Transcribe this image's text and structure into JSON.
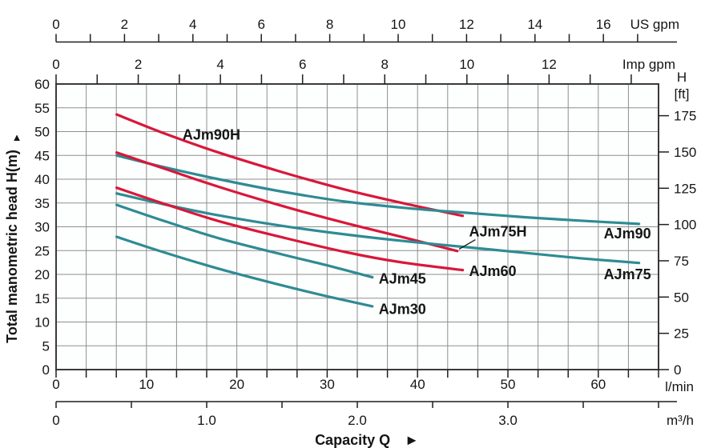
{
  "chart_data": {
    "type": "line",
    "title": "",
    "x_title": {
      "text": "Capacity Q",
      "arrow": "►"
    },
    "x_axes": {
      "us_gpm": {
        "unit": "US gpm",
        "labeled": [
          0,
          2,
          4,
          6,
          8,
          10,
          12,
          14,
          16
        ],
        "max_tick": 17,
        "lpm_per_unit": 3.7854
      },
      "imp_gpm": {
        "unit": "Imp gpm",
        "labeled": [
          0,
          2,
          4,
          6,
          8,
          10,
          12
        ],
        "max_tick": 14,
        "lpm_per_unit": 4.5461
      },
      "lpm": {
        "unit": "l/min",
        "labeled": [
          0,
          10,
          20,
          30,
          40,
          50,
          60
        ],
        "max": 66.667
      },
      "m3h": {
        "unit": "m³/h",
        "labeled": [
          "0",
          "1.0",
          "2.0",
          "3.0"
        ],
        "labeled_values": [
          0,
          1,
          2,
          3
        ],
        "tick_step": 0.5,
        "max": 4.0,
        "lpm_per_unit": 16.667
      }
    },
    "y_axes": {
      "meters": {
        "title": "Total manometric head H(m)",
        "arrow": "▲",
        "min": 0,
        "max": 60,
        "label_step": 5
      },
      "feet": {
        "title_line1": "H",
        "title_line2": "[ft]",
        "labeled": [
          0,
          25,
          50,
          75,
          100,
          125,
          150,
          175
        ],
        "m_per_unit": 0.3048
      }
    },
    "grid": {
      "cols": 20,
      "rows": 12
    },
    "colors": {
      "high_head_series": "#d9173a",
      "standard_series": "#2e8b93",
      "grid": "#8f8f8f",
      "frame": "#3a3a3a",
      "axis": "#1f1f1f"
    },
    "series": [
      {
        "name": "AJm90H",
        "color_role": "high_head_series",
        "points": [
          [
            6.7,
            53.6
          ],
          [
            12,
            49.6
          ],
          [
            18,
            45.6
          ],
          [
            25,
            41.5
          ],
          [
            32,
            37.8
          ],
          [
            39,
            34.7
          ],
          [
            45,
            32.3
          ]
        ],
        "label_at": [
          14,
          48.3
        ]
      },
      {
        "name": "AJm90",
        "color_role": "standard_series",
        "points": [
          [
            6.7,
            45.0
          ],
          [
            12,
            42.5
          ],
          [
            18,
            40.0
          ],
          [
            25,
            37.4
          ],
          [
            32,
            35.3
          ],
          [
            39,
            33.9
          ],
          [
            45,
            33.0
          ],
          [
            52,
            32.0
          ],
          [
            58,
            31.3
          ],
          [
            64.5,
            30.6
          ]
        ],
        "label_at": [
          60.6,
          27.6
        ]
      },
      {
        "name": "AJm75H",
        "color_role": "high_head_series",
        "points": [
          [
            6.7,
            45.6
          ],
          [
            12,
            42.2
          ],
          [
            18,
            38.4
          ],
          [
            25,
            34.4
          ],
          [
            32,
            30.8
          ],
          [
            38,
            28.0
          ],
          [
            44.4,
            24.9
          ]
        ],
        "label_at": [
          45.7,
          28.0
        ],
        "leader": [
          [
            46.4,
            27.3
          ],
          [
            44.6,
            25.3
          ]
        ]
      },
      {
        "name": "AJm75",
        "color_role": "standard_series",
        "points": [
          [
            6.7,
            37.0
          ],
          [
            12,
            34.7
          ],
          [
            18,
            32.4
          ],
          [
            25,
            30.2
          ],
          [
            32,
            28.4
          ],
          [
            39,
            26.9
          ],
          [
            45,
            25.8
          ],
          [
            52,
            24.5
          ],
          [
            58,
            23.4
          ],
          [
            64.5,
            22.4
          ]
        ],
        "label_at": [
          60.6,
          19.0
        ]
      },
      {
        "name": "AJm60",
        "color_role": "high_head_series",
        "points": [
          [
            6.7,
            38.2
          ],
          [
            12,
            34.8
          ],
          [
            18,
            31.2
          ],
          [
            25,
            27.8
          ],
          [
            32,
            24.7
          ],
          [
            38,
            22.6
          ],
          [
            45,
            20.9
          ]
        ],
        "label_at": [
          45.7,
          19.7
        ]
      },
      {
        "name": "AJm45",
        "color_role": "standard_series",
        "points": [
          [
            6.7,
            34.6
          ],
          [
            12,
            31.2
          ],
          [
            18,
            27.6
          ],
          [
            25,
            24.2
          ],
          [
            30,
            21.9
          ],
          [
            35,
            19.4
          ]
        ],
        "label_at": [
          35.7,
          18.1
        ]
      },
      {
        "name": "AJm30",
        "color_role": "standard_series",
        "points": [
          [
            6.7,
            27.9
          ],
          [
            12,
            24.6
          ],
          [
            18,
            21.2
          ],
          [
            25,
            17.7
          ],
          [
            30,
            15.4
          ],
          [
            35,
            13.3
          ]
        ],
        "label_at": [
          35.7,
          11.7
        ]
      }
    ]
  }
}
